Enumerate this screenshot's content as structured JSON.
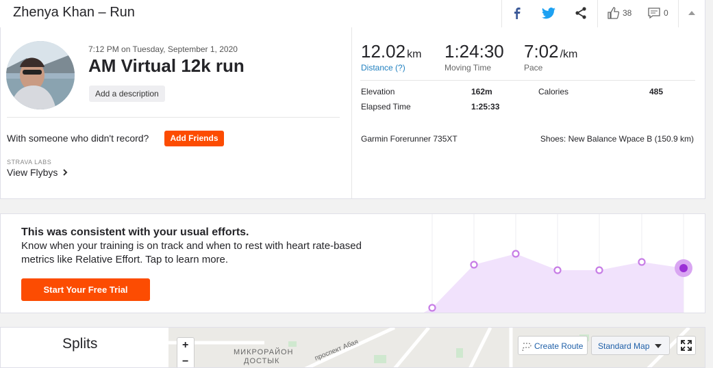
{
  "header": {
    "title": "Zhenya Khan – Run",
    "kudos": "38",
    "comments": "0"
  },
  "activity": {
    "datetime": "7:12 PM on Tuesday, September 1, 2020",
    "name": "AM Virtual 12k run",
    "add_description": "Add a description",
    "with_someone": "With someone who didn't record?",
    "add_friends": "Add Friends",
    "labs_label": "STRAVA LABS",
    "flybys": "View Flybys"
  },
  "stats": {
    "primary": [
      {
        "value": "12.02",
        "unit": "km",
        "label": "Distance (?)"
      },
      {
        "value": "1:24:30",
        "label": "Moving Time"
      },
      {
        "value": "7:02",
        "unit": "/km",
        "label": "Pace"
      }
    ],
    "details": [
      {
        "label": "Elevation",
        "value": "162m"
      },
      {
        "label": "Calories",
        "value": "485"
      },
      {
        "label": "Elapsed Time",
        "value": "1:25:33"
      }
    ],
    "device": "Garmin Forerunner 735XT",
    "shoes": "Shoes: New Balance Wpace B (150.9 km)"
  },
  "effort": {
    "heading": "This was consistent with your usual efforts.",
    "body_line1": "Know when your training is on track and when to rest with heart rate-based",
    "body_line2": "metrics like Relative Effort. Tap to learn more.",
    "button": "Start Your Free Trial"
  },
  "splits": {
    "title": "Splits"
  },
  "map": {
    "zoom_in": "+",
    "zoom_out": "−",
    "create_route": "Create Route",
    "map_type": "Standard Map",
    "labels": [
      "МИКРОРАЙОН",
      "ДОСТЫК",
      "проспект Абая"
    ]
  }
}
